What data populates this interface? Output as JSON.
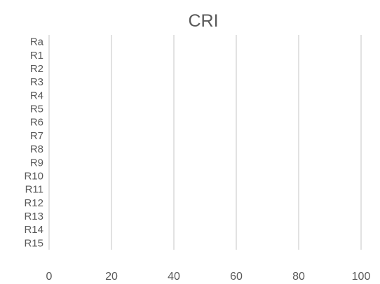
{
  "chart_data": {
    "type": "bar",
    "orientation": "horizontal",
    "title": "CRI",
    "categories": [
      "Ra",
      "R1",
      "R2",
      "R3",
      "R4",
      "R5",
      "R6",
      "R7",
      "R8",
      "R9",
      "R10",
      "R11",
      "R12",
      "R13",
      "R14",
      "R15"
    ],
    "values": [
      null,
      null,
      null,
      null,
      null,
      null,
      null,
      null,
      null,
      null,
      null,
      null,
      null,
      null,
      null,
      null
    ],
    "xlim": [
      0,
      100
    ],
    "xticks": [
      0,
      20,
      40,
      60,
      80,
      100
    ],
    "grid": true,
    "legend": "none",
    "colors": {
      "text": "#595959",
      "grid": "#d9d9d9"
    }
  }
}
